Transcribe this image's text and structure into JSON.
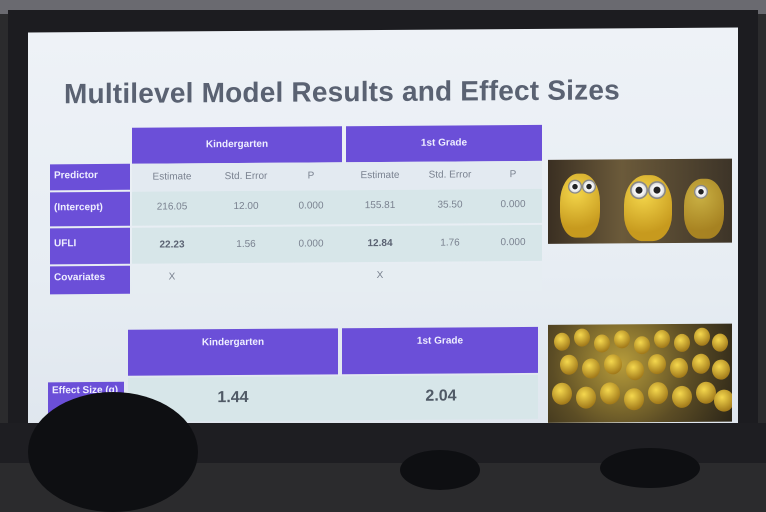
{
  "slide": {
    "title": "Multilevel Model Results and Effect Sizes"
  },
  "table1": {
    "group_headers": [
      "Kindergarten",
      "1st Grade"
    ],
    "predictor_label": "Predictor",
    "columns": [
      "Estimate",
      "Std. Error",
      "P",
      "Estimate",
      "Std. Error",
      "P"
    ],
    "rows": [
      {
        "label": "(Intercept)",
        "cells": [
          "216.05",
          "12.00",
          "0.000",
          "155.81",
          "35.50",
          "0.000"
        ]
      },
      {
        "label": "UFLI",
        "cells": [
          "22.23",
          "1.56",
          "0.000",
          "12.84",
          "1.76",
          "0.000"
        ]
      },
      {
        "label": "Covariates",
        "cells": [
          "X",
          "",
          "",
          "X",
          "",
          ""
        ]
      }
    ]
  },
  "table2": {
    "group_headers": [
      "Kindergarten",
      "1st Grade"
    ],
    "row_label": "Effect Size (g)",
    "values": [
      "1.44",
      "2.04"
    ]
  },
  "images": [
    {
      "icon": "minions-photo"
    },
    {
      "icon": "minion-crowd-photo"
    }
  ]
}
